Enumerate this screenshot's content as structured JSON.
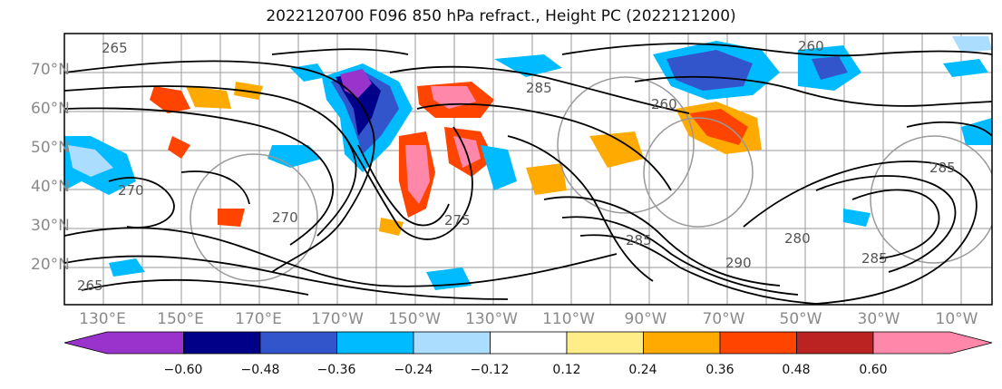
{
  "title": "2022120700 F096 850 hPa refract., Height PC (2022121200)",
  "lat_labels": [
    "70°N",
    "60°N",
    "50°N",
    "40°N",
    "30°N",
    "20°N"
  ],
  "lon_labels": [
    "130°E",
    "150°E",
    "170°E",
    "170°W",
    "150°W",
    "130°W",
    "110°W",
    "90°W",
    "70°W",
    "50°W",
    "30°W",
    "10°W"
  ],
  "colorbar": {
    "colors": [
      "#9933cc",
      "#000088",
      "#3355cc",
      "#00bbff",
      "#aaddff",
      "#ffffff",
      "#ffee88",
      "#ffaa00",
      "#ff4400",
      "#bb2222",
      "#ff88aa"
    ],
    "ticks": [
      "−0.60",
      "−0.48",
      "−0.36",
      "−0.24",
      "−0.12",
      "0.12",
      "0.24",
      "0.36",
      "0.48",
      "0.60"
    ]
  },
  "contour_labels": [
    "265",
    "285",
    "260",
    "285",
    "275",
    "270",
    "285",
    "280",
    "290",
    "285",
    "270",
    "265",
    "260"
  ]
}
